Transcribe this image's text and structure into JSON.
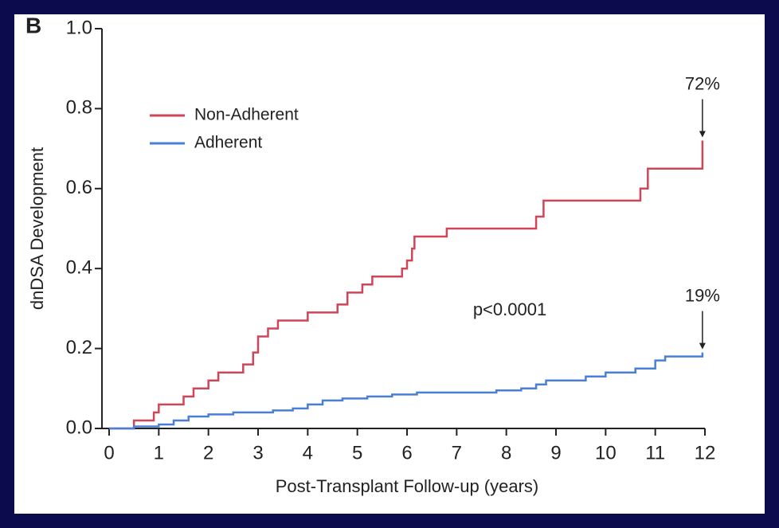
{
  "chart_data": {
    "type": "step",
    "panel_label": "B",
    "x_label": "Post-Transplant Follow-up (years)",
    "y_label": "dnDSA Development",
    "annotations": [
      "p<0.0001"
    ],
    "xlim": [
      0,
      12
    ],
    "xticks": [
      0,
      1,
      2,
      3,
      4,
      5,
      6,
      7,
      8,
      9,
      10,
      11,
      12
    ],
    "ylim": [
      0,
      1
    ],
    "yticks": [
      {
        "value": 0,
        "label": "0.0"
      },
      0.2,
      0.4,
      0.6,
      0.8,
      {
        "value": 1,
        "label": "1.0"
      }
    ],
    "legend": "upper left",
    "series": [
      {
        "name": "Non-Adherent",
        "color": "#d04558",
        "end_label": "72%",
        "x": [
          0,
          0.5,
          0.9,
          1.0,
          1.5,
          1.7,
          2.0,
          2.2,
          2.7,
          2.9,
          3.0,
          3.2,
          3.4,
          4.0,
          4.6,
          4.8,
          5.1,
          5.3,
          5.9,
          6.0,
          6.1,
          6.15,
          6.8,
          8.6,
          8.75,
          10.7,
          10.85,
          11.95
        ],
        "values": [
          0,
          0.02,
          0.04,
          0.06,
          0.08,
          0.1,
          0.12,
          0.14,
          0.16,
          0.19,
          0.23,
          0.25,
          0.27,
          0.29,
          0.31,
          0.34,
          0.36,
          0.38,
          0.4,
          0.42,
          0.45,
          0.48,
          0.5,
          0.53,
          0.57,
          0.6,
          0.65,
          0.72
        ]
      },
      {
        "name": "Adherent",
        "color": "#4a7fd8",
        "end_label": "19%",
        "x": [
          0,
          0.5,
          1.0,
          1.3,
          1.6,
          2.0,
          2.5,
          3.3,
          3.7,
          4.0,
          4.3,
          4.7,
          5.2,
          5.7,
          6.2,
          7.8,
          8.3,
          8.6,
          8.8,
          9.6,
          10.0,
          10.6,
          11.0,
          11.2,
          11.95
        ],
        "values": [
          0,
          0.005,
          0.01,
          0.02,
          0.03,
          0.035,
          0.04,
          0.045,
          0.05,
          0.06,
          0.07,
          0.075,
          0.08,
          0.085,
          0.09,
          0.095,
          0.1,
          0.11,
          0.12,
          0.13,
          0.14,
          0.15,
          0.17,
          0.18,
          0.19
        ]
      }
    ]
  }
}
